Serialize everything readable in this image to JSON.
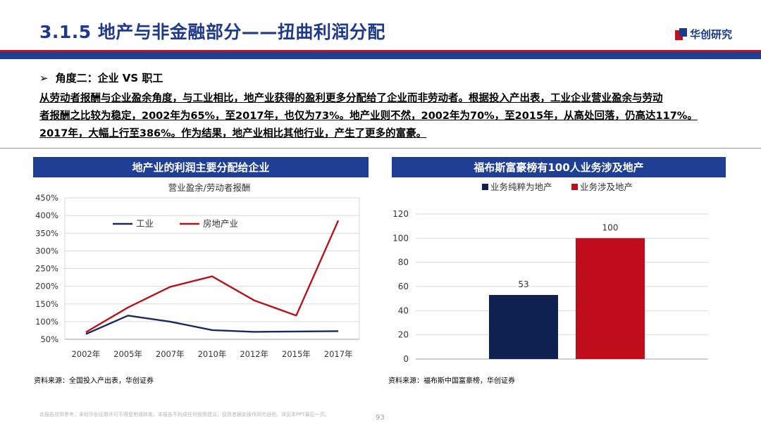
{
  "header": {
    "title": "3.1.5 地产与非金融部分——扭曲利润分配",
    "logo_text": "华创研究"
  },
  "subheading": {
    "arrow": "➢",
    "text": "角度二：企业 VS 职工"
  },
  "paragraph": {
    "line1": "从劳动者报酬与企业盈余角度，与工业相比，地产业获得的盈利更多分配给了企业而非劳动者。根据投入产出表，工业企业营业盈余与劳动",
    "line2": "者报酬之比较为稳定，2002年为65%，至2017年，也仅为73%。地产业则不然，2002年为70%，至2015年，从高处回落，仍高达117%。",
    "line3": "2017年，大幅上行至386%。作为结果，地产业相比其他行业，产生了更多的富豪。"
  },
  "left_panel": {
    "header": "地产业的利润主要分配给企业",
    "source": "资料来源：全国投入产出表，华创证券"
  },
  "right_panel": {
    "header": "福布斯富豪榜有100人业务涉及地产",
    "source": "资料来源：福布斯中国富豪榜，华创证券"
  },
  "footer": {
    "disclaimer": "此报告仅供参考，未经华创证券许可不得复制或转发。本报告不构成任何投资建议，投资者据此操作风险自担。详见本PPT最后一页。",
    "page_number": "93"
  },
  "colors": {
    "title_blue": "#1f3a8a",
    "header_blue": "#1f3f95",
    "accent_red": "#c40f1a",
    "navy_series": "#1b2a5c",
    "red_series": "#b8121c"
  },
  "chart_data": [
    {
      "type": "line",
      "title": "营业盈余/劳动者报酬",
      "categories": [
        "2002年",
        "2005年",
        "2007年",
        "2010年",
        "2012年",
        "2015年",
        "2017年"
      ],
      "series": [
        {
          "name": "工业",
          "values": [
            65,
            117,
            100,
            76,
            71,
            72,
            73
          ],
          "color": "#1b2a5c"
        },
        {
          "name": "房地产业",
          "values": [
            70,
            140,
            198,
            228,
            160,
            117,
            386
          ],
          "color": "#b8121c"
        }
      ],
      "yticks": [
        "50%",
        "100%",
        "150%",
        "200%",
        "250%",
        "300%",
        "350%",
        "400%",
        "450%"
      ],
      "ylim": [
        50,
        450
      ],
      "grid": true,
      "legend": "top-left"
    },
    {
      "type": "bar",
      "title": "",
      "categories": [
        "业务纯粹为地产",
        "业务涉及地产"
      ],
      "values": [
        53,
        100
      ],
      "colors": [
        "#0e2150",
        "#c00d1c"
      ],
      "yticks": [
        "0",
        "20",
        "40",
        "60",
        "80",
        "100",
        "120"
      ],
      "ylim": [
        0,
        120
      ],
      "grid": true,
      "legend": "top"
    }
  ]
}
